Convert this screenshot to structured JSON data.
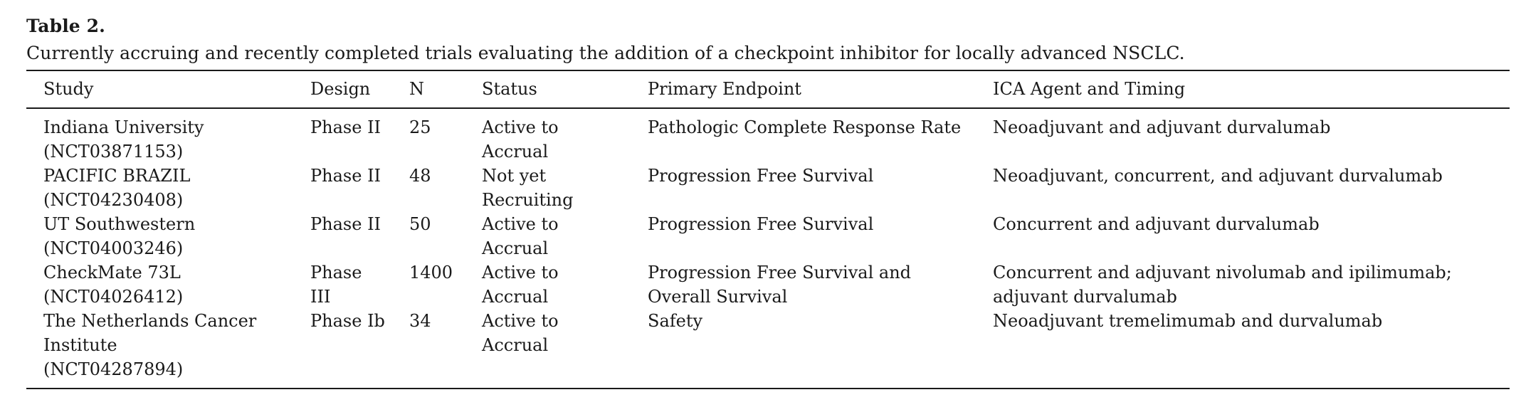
{
  "table_label": "Table 2.",
  "caption": "Currently accruing and recently completed trials evaluating the addition of a checkpoint inhibitor for locally advanced NSCLC.",
  "columns": [
    "Study",
    "Design",
    "N",
    "Status",
    "Primary Endpoint",
    "ICA Agent and Timing"
  ],
  "rows": [
    {
      "study": "Indiana University",
      "study_id": "(NCT03871153)",
      "design": "Phase II",
      "n": "25",
      "status": "Active to Accrual",
      "endpoint": "Pathologic Complete Response Rate",
      "agent": "Neoadjuvant and adjuvant durvalumab"
    },
    {
      "study": "PACIFIC BRAZIL",
      "study_id": "(NCT04230408)",
      "design": "Phase II",
      "n": "48",
      "status": "Not yet Recruiting",
      "endpoint": "Progression Free Survival",
      "agent": "Neoadjuvant, concurrent, and adjuvant durvalumab"
    },
    {
      "study": "UT Southwestern",
      "study_id": "(NCT04003246)",
      "design": "Phase II",
      "n": "50",
      "status": "Active to Accrual",
      "endpoint": "Progression Free Survival",
      "agent": "Concurrent and adjuvant durvalumab"
    },
    {
      "study": "CheckMate 73L",
      "study_id": "(NCT04026412)",
      "design": "Phase III",
      "n": "1400",
      "status": "Active to Accrual",
      "endpoint": "Progression Free Survival and Overall Survival",
      "agent": "Concurrent and adjuvant nivolumab and ipilimumab; adjuvant durvalumab"
    },
    {
      "study": "The Netherlands Cancer Institute",
      "study_id": "(NCT04287894)",
      "design": "Phase Ib",
      "n": "34",
      "status": "Active to Accrual",
      "endpoint": "Safety",
      "agent": "Neoadjuvant tremelimumab and durvalumab"
    }
  ]
}
